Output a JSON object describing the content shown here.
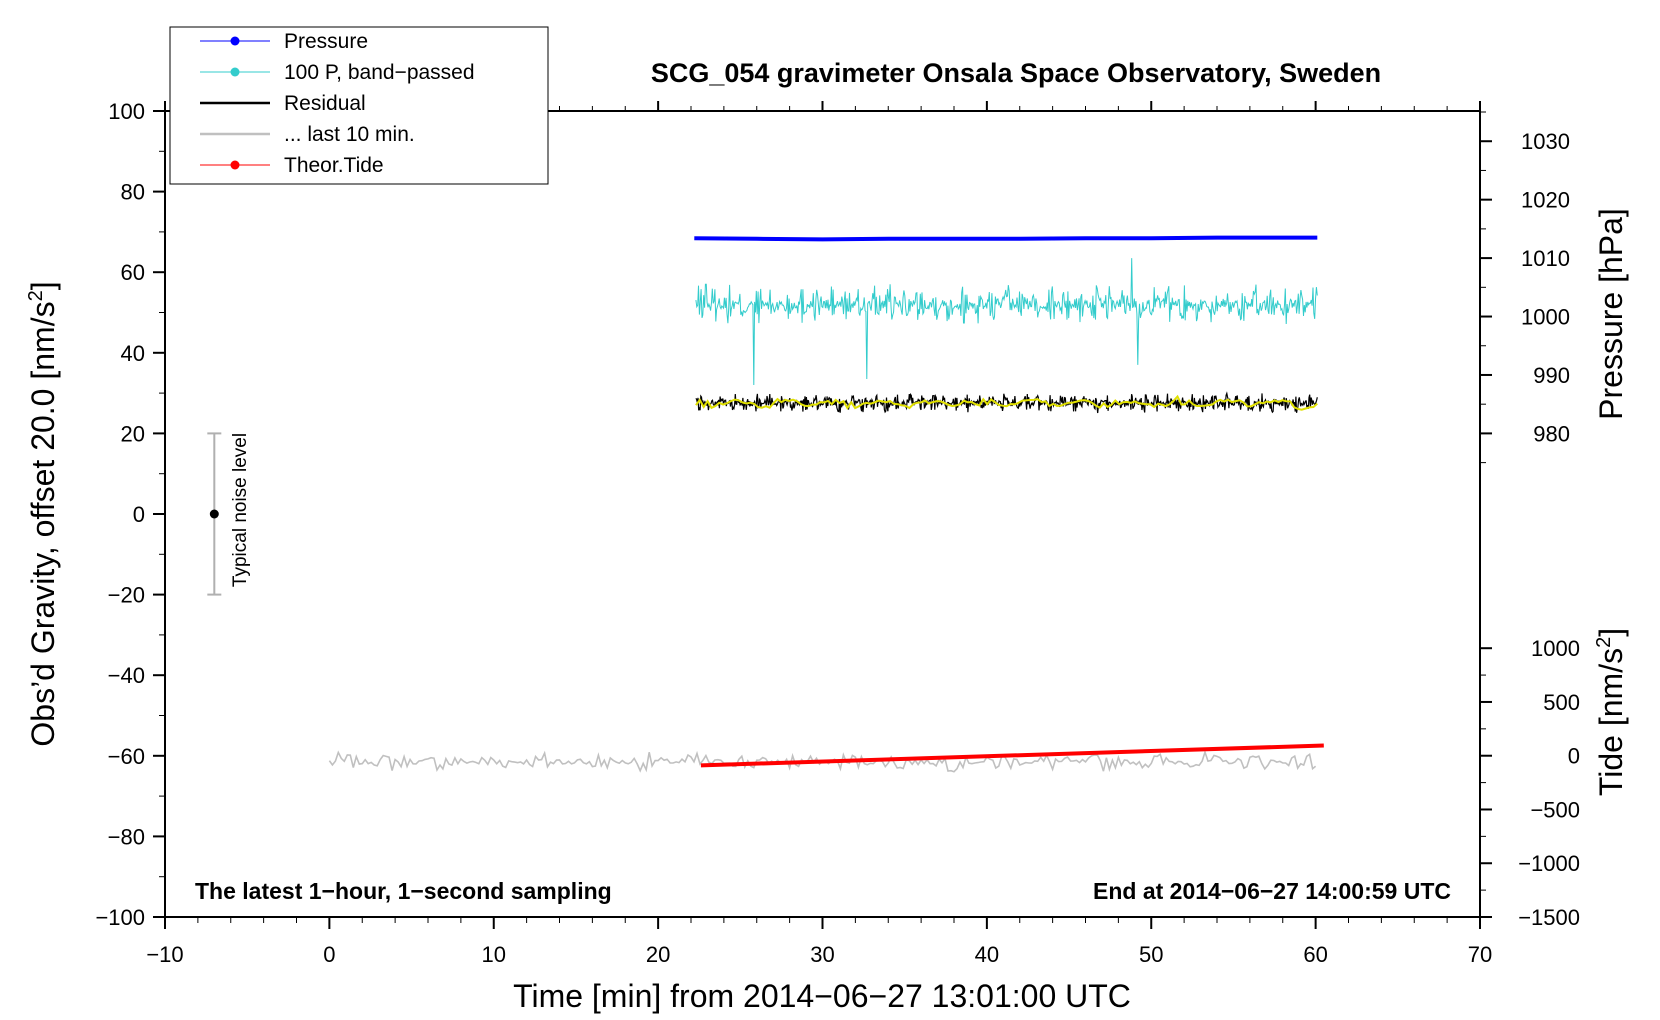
{
  "chart_data": {
    "type": "line",
    "title": "SCG_054 gravimeter Onsala Space Observatory, Sweden",
    "xlabel": "Time [min] from 2014−06−27 13:01:00 UTC",
    "ylabel_main": "Obs’d Gravity, offset 20.0 [nm/s",
    "ylabel_main_sup": "2",
    "ylabel_main_end": "]",
    "ylabel_pressure": "Pressure [hPa]",
    "ylabel_tide": "Tide [nm/s",
    "ylabel_tide_sup": "2",
    "ylabel_tide_end": "]",
    "xlim": [
      -10,
      70
    ],
    "ylim": [
      -100,
      100
    ],
    "x_ticks": [
      {
        "v": -10,
        "label": "−10"
      },
      {
        "v": 0,
        "label": "0"
      },
      {
        "v": 10,
        "label": "10"
      },
      {
        "v": 20,
        "label": "20"
      },
      {
        "v": 30,
        "label": "30"
      },
      {
        "v": 40,
        "label": "40"
      },
      {
        "v": 50,
        "label": "50"
      },
      {
        "v": 60,
        "label": "60"
      },
      {
        "v": 70,
        "label": "70"
      }
    ],
    "y_ticks": [
      {
        "v": 100,
        "label": "100"
      },
      {
        "v": 80,
        "label": "80"
      },
      {
        "v": 60,
        "label": "60"
      },
      {
        "v": 40,
        "label": "40"
      },
      {
        "v": 20,
        "label": "20"
      },
      {
        "v": 0,
        "label": "0"
      },
      {
        "v": -20,
        "label": "−20"
      },
      {
        "v": -40,
        "label": "−40"
      },
      {
        "v": -60,
        "label": "−60"
      },
      {
        "v": -80,
        "label": "−80"
      },
      {
        "v": -100,
        "label": "−100"
      }
    ],
    "pressure_axis": {
      "map_y": [
        [
          980,
          20
        ],
        [
          1030,
          92.5
        ]
      ],
      "ticks": [
        {
          "v": 1030,
          "label": "1030"
        },
        {
          "v": 1020,
          "label": "1020"
        },
        {
          "v": 1010,
          "label": "1010"
        },
        {
          "v": 1000,
          "label": "1000"
        },
        {
          "v": 990,
          "label": "990"
        },
        {
          "v": 980,
          "label": "980"
        }
      ]
    },
    "tide_axis": {
      "map_y": [
        [
          -1500,
          -100
        ],
        [
          1000,
          -33.3
        ]
      ],
      "ticks": [
        {
          "v": 1000,
          "label": "1000"
        },
        {
          "v": 500,
          "label": "500"
        },
        {
          "v": 0,
          "label": "0"
        },
        {
          "v": -500,
          "label": "−500"
        },
        {
          "v": -1000,
          "label": "−1000"
        },
        {
          "v": -1500,
          "label": "−1500"
        }
      ]
    },
    "series": [
      {
        "name": "Pressure",
        "color": "#0000ff",
        "unit": "hPa",
        "x": [
          22.2,
          26,
          30,
          34,
          38,
          42,
          46,
          50,
          54,
          58,
          60.1
        ],
        "values": [
          1013.4,
          1013.3,
          1013.2,
          1013.3,
          1013.3,
          1013.3,
          1013.4,
          1013.4,
          1013.5,
          1013.5,
          1013.5
        ]
      },
      {
        "name": "100 P, band−passed",
        "color": "#33cccc",
        "unit": "nm/s2",
        "x": [
          22.3,
          60.1
        ],
        "center": 52,
        "amplitude": 5,
        "spikes": [
          [
            22.9,
            57
          ],
          [
            25.8,
            32
          ],
          [
            32.7,
            33.5
          ],
          [
            48.8,
            63.5
          ],
          [
            49.2,
            37
          ]
        ]
      },
      {
        "name": "Residual",
        "color": "#000000",
        "unit": "nm/s2",
        "x": [
          22.3,
          60.1
        ],
        "center": 27.5,
        "amplitude": 2.5
      },
      {
        "name": "... last 10 min.",
        "color": "#c0c0c0",
        "unit": "nm/s2",
        "x": [
          0,
          60
        ],
        "center": -61.5,
        "amplitude": 2.5
      },
      {
        "name": "Theor.Tide",
        "color": "#ff0000",
        "unit": "nm/s2",
        "x": [
          22.6,
          60.5
        ],
        "values": [
          -90,
          95
        ]
      }
    ],
    "smoothed_residual": {
      "color": "#e0e000",
      "center": 27.5,
      "amplitude": 1.2
    },
    "noise_bar": {
      "label": "Typical noise level",
      "x": -7,
      "y": 0,
      "low": -20,
      "high": 20
    },
    "annotation_left": "The latest 1−hour, 1−second sampling",
    "annotation_right": "End at 2014−06−27 14:00:59 UTC",
    "legend_position": "top-left"
  }
}
